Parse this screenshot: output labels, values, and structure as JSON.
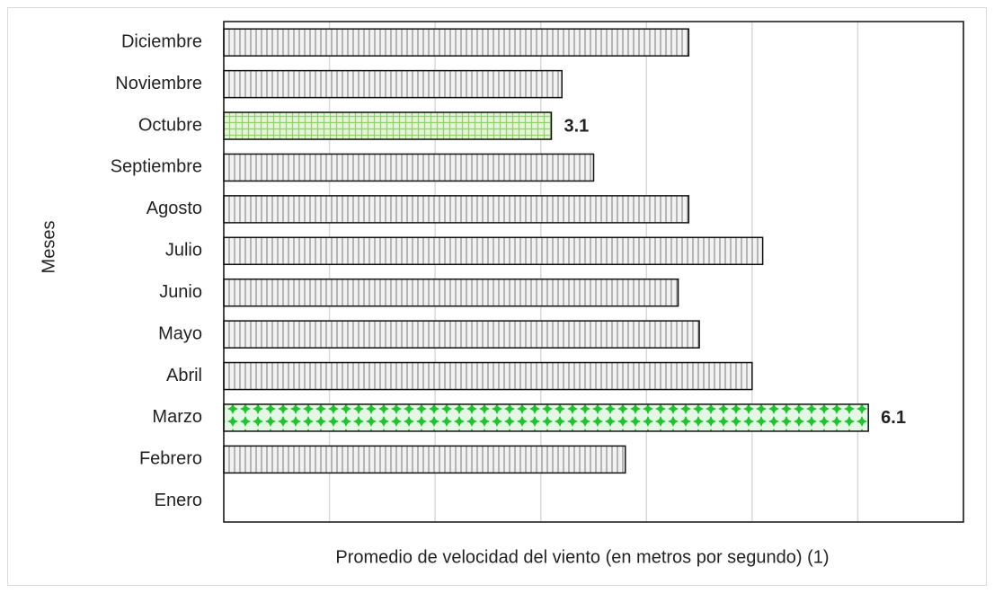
{
  "chart_data": {
    "type": "barh",
    "ylabel": "Meses",
    "xlabel": "Promedio de velocidad del viento (en metros por segundo) (1)",
    "categories": [
      "Enero",
      "Febrero",
      "Marzo",
      "Abril",
      "Mayo",
      "Junio",
      "Julio",
      "Agosto",
      "Septiembre",
      "Octubre",
      "Noviembre",
      "Diciembre"
    ],
    "values": [
      null,
      3.8,
      6.1,
      5.0,
      4.5,
      4.3,
      5.1,
      4.4,
      3.5,
      3.1,
      3.2,
      4.4
    ],
    "value_labels": [
      null,
      null,
      "6.1",
      null,
      null,
      null,
      null,
      null,
      null,
      "3.1",
      null,
      null
    ],
    "bar_patterns": [
      "stripes",
      "stripes",
      "diamonds",
      "stripes",
      "stripes",
      "stripes",
      "stripes",
      "stripes",
      "stripes",
      "grid",
      "stripes",
      "stripes"
    ],
    "xlim": [
      0,
      7
    ],
    "xticks": [
      0,
      1,
      2,
      3,
      4,
      5,
      6,
      7
    ],
    "grid": true
  }
}
